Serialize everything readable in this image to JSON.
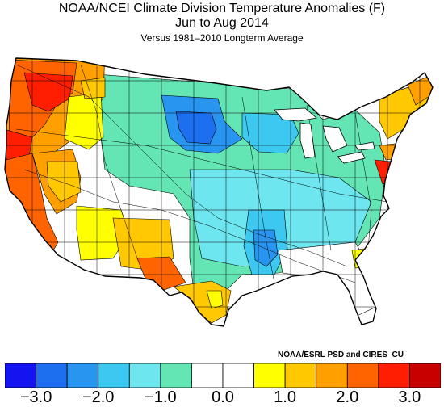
{
  "title": {
    "line1": "NOAA/NCEI Climate Division Temperature Anomalies (F)",
    "line2": "Jun to Aug 2014",
    "line3": "Versus 1981–2010 Longterm Average"
  },
  "credit": "NOAA/ESRL PSD and CIRES–CU",
  "legend": {
    "colors": [
      "#1414f0",
      "#1e6ef0",
      "#2896f0",
      "#3cc8f0",
      "#6ee6f0",
      "#64e6b4",
      "#ffffff",
      "#ffffff",
      "#ffff00",
      "#ffc800",
      "#ffa000",
      "#ff6400",
      "#ff1e00",
      "#c80000"
    ],
    "ticks": [
      {
        "label": "−3.0",
        "value": -3.0
      },
      {
        "label": "−2.0",
        "value": -2.0
      },
      {
        "label": "−1.0",
        "value": -1.0
      },
      {
        "label": "0.0",
        "value": 0.0
      },
      {
        "label": "1.0",
        "value": 1.0
      },
      {
        "label": "2.0",
        "value": 2.0
      },
      {
        "label": "3.0",
        "value": 3.0
      }
    ]
  },
  "map_regions": [
    {
      "name": "pacific-northwest-coast",
      "color": "#ff1e00"
    },
    {
      "name": "california",
      "color": "#ff6400"
    },
    {
      "name": "nevada-oregon-interior",
      "color": "#ffa000"
    },
    {
      "name": "idaho-west",
      "color": "#ffff00"
    },
    {
      "name": "southwest",
      "color": "#ffc800"
    },
    {
      "name": "west-texas",
      "color": "#ff6400"
    },
    {
      "name": "south-texas",
      "color": "#ffc800"
    },
    {
      "name": "northern-plains",
      "color": "#64e6b4"
    },
    {
      "name": "dakotas-cold-core",
      "color": "#1e6ef0"
    },
    {
      "name": "central-plains",
      "color": "#6ee6f0"
    },
    {
      "name": "midwest-east",
      "color": "#64e6b4"
    },
    {
      "name": "mississippi-valley-cold",
      "color": "#2896f0"
    },
    {
      "name": "upper-great-lakes",
      "color": "#3cc8f0"
    },
    {
      "name": "new-england",
      "color": "#ffc800"
    },
    {
      "name": "maine-north",
      "color": "#ffa000"
    },
    {
      "name": "southeast",
      "color": "#ffffff"
    },
    {
      "name": "carolina-coast",
      "color": "#ffff00"
    },
    {
      "name": "mid-atlantic-warm",
      "color": "#ff1e00"
    }
  ]
}
